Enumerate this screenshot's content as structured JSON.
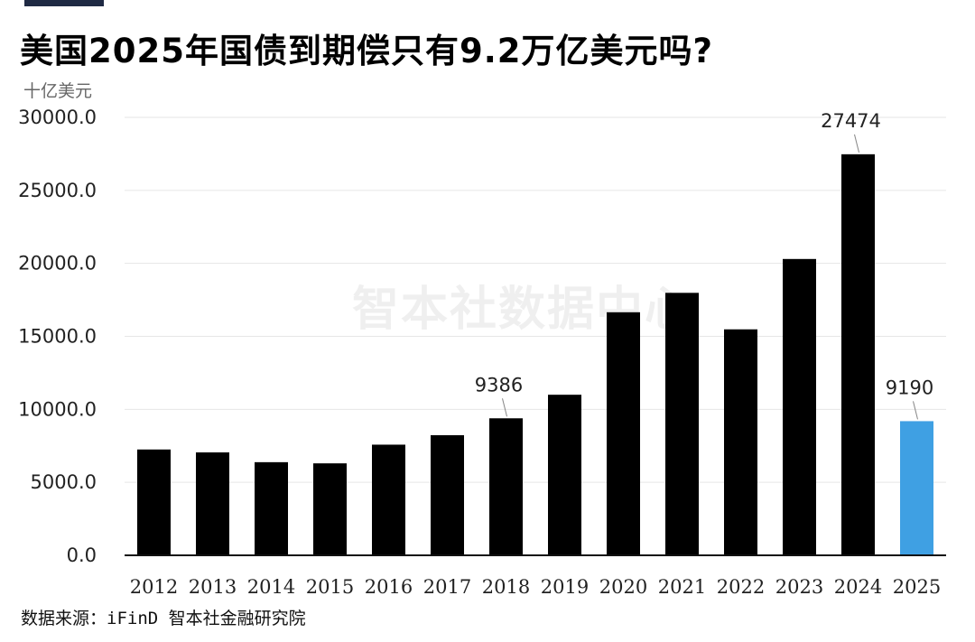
{
  "title": "美国2025年国债到期偿只有9.2万亿美元吗?",
  "unit_label": "十亿美元",
  "source": "数据来源：iFinD 智本社金融研究院",
  "watermark": "智本社数据中心",
  "colors": {
    "bar_default": "#000000",
    "bar_highlight": "#3fa0e3",
    "grid": "#e6e6e6",
    "axis": "#111111"
  },
  "chart_data": {
    "type": "bar",
    "title": "美国2025年国债到期偿只有9.2万亿美元吗?",
    "ylabel": "十亿美元",
    "xlabel": "",
    "categories": [
      "2012",
      "2013",
      "2014",
      "2015",
      "2016",
      "2017",
      "2018",
      "2019",
      "2020",
      "2021",
      "2022",
      "2023",
      "2024",
      "2025"
    ],
    "values": [
      7250,
      7050,
      6380,
      6300,
      7580,
      8230,
      9386,
      11000,
      16650,
      17980,
      15480,
      20300,
      27474,
      9190
    ],
    "highlight_index": 13,
    "data_labels": [
      {
        "index": 6,
        "text": "9386"
      },
      {
        "index": 12,
        "text": "27474"
      },
      {
        "index": 13,
        "text": "9190"
      }
    ],
    "yticks": [
      "0.0",
      "5000.0",
      "10000.0",
      "15000.0",
      "20000.0",
      "25000.0",
      "30000.0"
    ],
    "ylim": [
      0,
      30000
    ],
    "grid": true,
    "legend": "none"
  }
}
